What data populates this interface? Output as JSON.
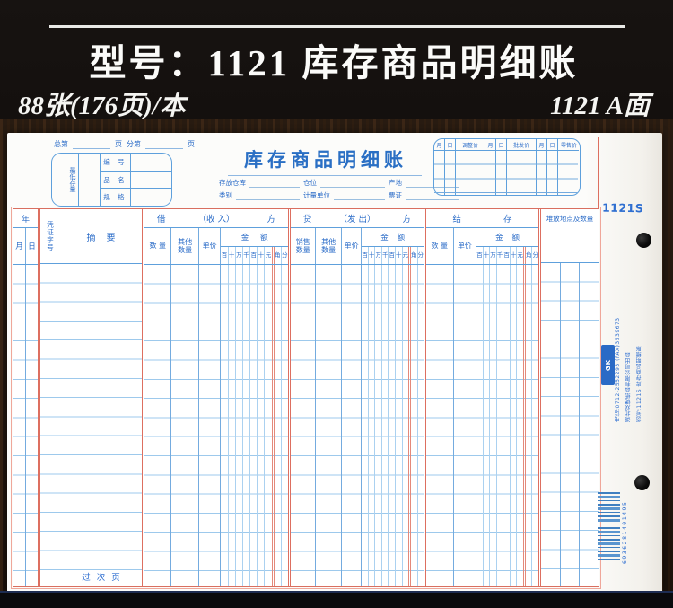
{
  "banner": {
    "title": "型号：1121 库存商品明细账",
    "left_sub": "88张(176页)/本",
    "right_sub": "1121 A面"
  },
  "form": {
    "page_labels": {
      "zong": "总第",
      "ye1": "页",
      "fen": "分第",
      "ye2": "页"
    },
    "stock_box": {
      "min_label": "最低存量",
      "rows": [
        "编 号",
        "品 名",
        "规 格"
      ]
    },
    "title": "库存商品明细账",
    "fields_r1": [
      "存放仓库",
      "仓位",
      "产地"
    ],
    "fields_r2": [
      "类别",
      "计量单位",
      "票证"
    ],
    "price_box": [
      {
        "m": "月",
        "d": "日",
        "p": "调整价"
      },
      {
        "m": "月",
        "d": "日",
        "p": "批发价"
      },
      {
        "m": "月",
        "d": "日",
        "p": "零售价"
      }
    ],
    "model_code": "1121S"
  },
  "table": {
    "year": "年",
    "month": "月",
    "day": "日",
    "voucher": "凭证字号",
    "summary": "摘要",
    "digits": [
      "百",
      "十",
      "万",
      "千",
      "百",
      "十",
      "元",
      "角",
      "分"
    ],
    "amount_label": [
      "金",
      "额"
    ],
    "borrow": {
      "title": [
        "借",
        "（收 入）",
        "方"
      ],
      "cols": [
        "数 量",
        "其他\n数量",
        "单价"
      ]
    },
    "lend": {
      "title": [
        "贷",
        "（发 出）",
        "方"
      ],
      "cols": [
        "销售\n数量",
        "其他\n数量",
        "单价"
      ]
    },
    "balance": {
      "title": [
        "结",
        "存"
      ],
      "cols": [
        "数 量",
        "单价"
      ]
    },
    "location": "堆放地点及数量",
    "footer": "过次页"
  },
  "side": {
    "logo_text": "GK",
    "lines": [
      "货号:1121S 库存商品明细账",
      "湖北双键纸品有限公司出品",
      "电话:0712-2552293 (FAX)3539673"
    ],
    "barcode_digits": "6936281401495"
  }
}
